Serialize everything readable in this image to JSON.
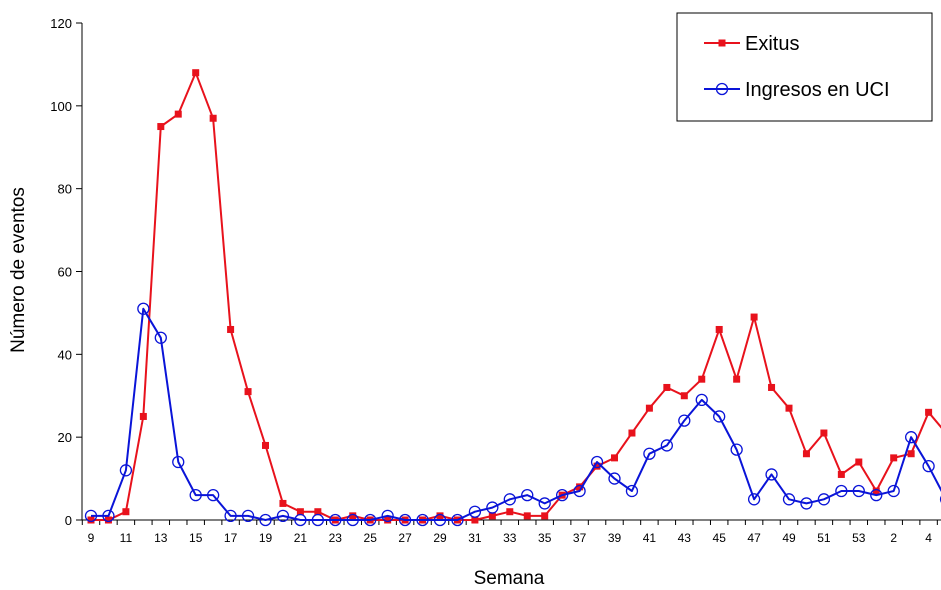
{
  "chart_data": {
    "type": "line",
    "title": "",
    "xlabel": "Semana",
    "ylabel": "Número de eventos",
    "ylim": [
      0,
      120
    ],
    "yticks": [
      "0",
      "20",
      "40",
      "60",
      "80",
      "100",
      "120"
    ],
    "grid": false,
    "legend_position": "top-right",
    "categories": [
      "9",
      "10",
      "11",
      "12",
      "13",
      "14",
      "15",
      "16",
      "17",
      "18",
      "19",
      "20",
      "21",
      "22",
      "23",
      "24",
      "25",
      "26",
      "27",
      "28",
      "29",
      "30",
      "31",
      "32",
      "33",
      "34",
      "35",
      "36",
      "37",
      "38",
      "39",
      "40",
      "41",
      "42",
      "43",
      "44",
      "45",
      "46",
      "47",
      "48",
      "49",
      "50",
      "51",
      "52",
      "53",
      "1",
      "2",
      "3",
      "4",
      "5"
    ],
    "xtick_labels": [
      "9",
      "11",
      "13",
      "15",
      "17",
      "19",
      "21",
      "23",
      "25",
      "27",
      "29",
      "31",
      "33",
      "35",
      "37",
      "39",
      "41",
      "43",
      "45",
      "47",
      "49",
      "51",
      "53",
      "2",
      "4"
    ],
    "series": [
      {
        "name": "Exitus",
        "color": "#e8121c",
        "marker": "square",
        "values": [
          0,
          0,
          2,
          25,
          95,
          98,
          108,
          97,
          46,
          31,
          18,
          4,
          2,
          2,
          0,
          1,
          0,
          0,
          0,
          0,
          1,
          0,
          0,
          1,
          2,
          1,
          1,
          6,
          8,
          13,
          15,
          21,
          27,
          32,
          30,
          34,
          46,
          34,
          49,
          32,
          27,
          16,
          21,
          11,
          14,
          7,
          15,
          16,
          26,
          21
        ]
      },
      {
        "name": "Ingresos en UCI",
        "color": "#0a14d8",
        "marker": "circle",
        "values": [
          1,
          1,
          12,
          51,
          44,
          14,
          6,
          6,
          1,
          1,
          0,
          1,
          0,
          0,
          0,
          0,
          0,
          1,
          0,
          0,
          0,
          0,
          2,
          3,
          5,
          6,
          4,
          6,
          7,
          14,
          10,
          7,
          16,
          18,
          24,
          29,
          25,
          17,
          5,
          11,
          5,
          4,
          5,
          7,
          7,
          6,
          7,
          20,
          13,
          5
        ]
      }
    ]
  }
}
